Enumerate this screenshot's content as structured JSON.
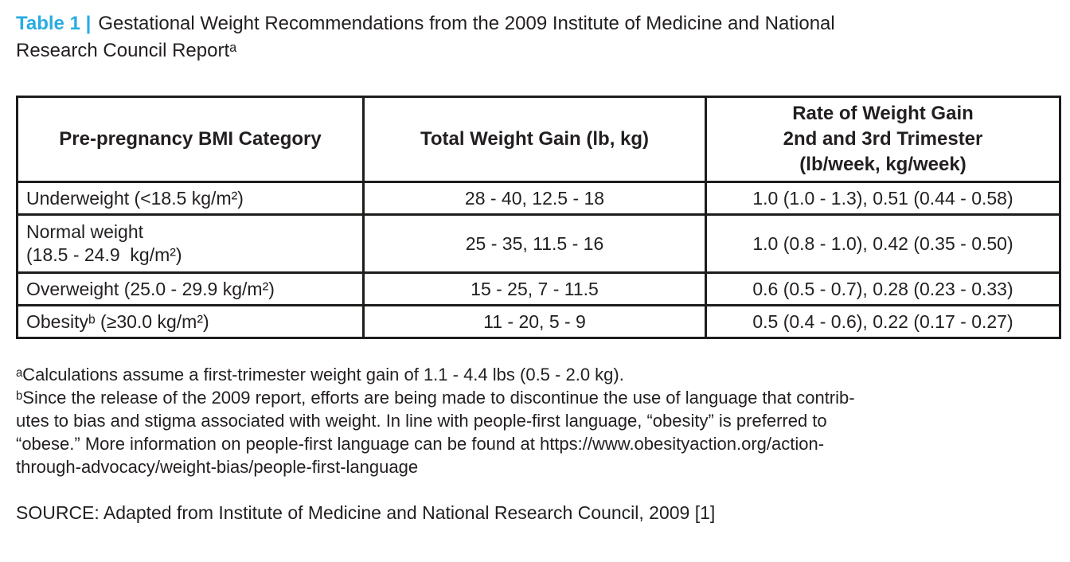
{
  "colors": {
    "accent": "#29abe2",
    "ink": "#231f20",
    "table_border": "#1d1d1b"
  },
  "title": {
    "label": "Table 1 |",
    "text": "Gestational Weight Recommendations from the 2009 Institute of Medicine and National\nResearch Council Reportᵃ"
  },
  "table": {
    "headers": [
      "Pre-pregnancy BMI Category",
      "Total Weight Gain (lb, kg)",
      "Rate of Weight Gain\n2nd and 3rd Trimester\n(lb/week, kg/week)"
    ],
    "rows": [
      [
        "Underweight (<18.5 kg/m²)",
        "28 - 40, 12.5 - 18",
        "1.0 (1.0 - 1.3), 0.51 (0.44 - 0.58)"
      ],
      [
        "Normal weight\n(18.5 - 24.9  kg/m²)",
        "25 - 35, 11.5 - 16",
        "1.0 (0.8 - 1.0), 0.42 (0.35 - 0.50)"
      ],
      [
        "Overweight (25.0 - 29.9 kg/m²)",
        "15 - 25, 7 - 11.5",
        "0.6 (0.5 - 0.7), 0.28 (0.23 - 0.33)"
      ],
      [
        "Obesityᵇ (≥30.0 kg/m²)",
        "11 - 20, 5 - 9",
        "0.5 (0.4 - 0.6), 0.22 (0.17 - 0.27)"
      ]
    ]
  },
  "footnotes": {
    "a": "ᵃCalculations assume a first-trimester weight gain of 1.1 - 4.4 lbs (0.5 - 2.0 kg).",
    "b": "ᵇSince the release of the 2009 report, efforts are being made to discontinue the use of language that contrib-\nutes to bias and stigma associated with weight. In line with people-first language, “obesity” is preferred to\n“obese.” More information on people-first language can be found at https://www.obesityaction.org/action-\nthrough-advocacy/weight-bias/people-first-language"
  },
  "source": "SOURCE: Adapted from Institute of Medicine and National Research Council, 2009 [1]"
}
